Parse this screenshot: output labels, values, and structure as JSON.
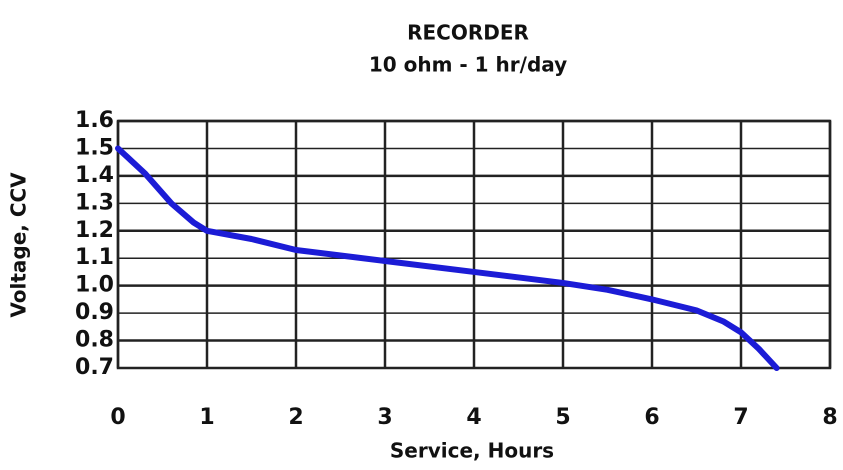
{
  "chart_data": {
    "type": "line",
    "title": "RECORDER",
    "subtitle": "10 ohm - 1 hr/day",
    "x_label": "Service, Hours",
    "y_label": "Voltage, CCV",
    "series": [
      {
        "name": "Voltage",
        "color": "#1c1cd6",
        "x": [
          0,
          0.3,
          0.6,
          0.85,
          1,
          1.5,
          2,
          3,
          4,
          5,
          5.5,
          6,
          6.5,
          6.8,
          7,
          7.2,
          7.4
        ],
        "values": [
          1.5,
          1.41,
          1.3,
          1.23,
          1.2,
          1.17,
          1.13,
          1.09,
          1.05,
          1.01,
          0.985,
          0.95,
          0.91,
          0.87,
          0.83,
          0.77,
          0.7
        ]
      }
    ],
    "xlim": [
      0,
      8
    ],
    "xticks": [
      0,
      1,
      2,
      3,
      4,
      5,
      6,
      7,
      8
    ],
    "ylim": [
      0.7,
      1.6
    ],
    "yticks": [
      0.7,
      0.8,
      0.9,
      {
        "value": 1,
        "label": "1.0"
      },
      1.1,
      1.2,
      1.3,
      1.4,
      1.5,
      1.6
    ],
    "grid": true
  }
}
